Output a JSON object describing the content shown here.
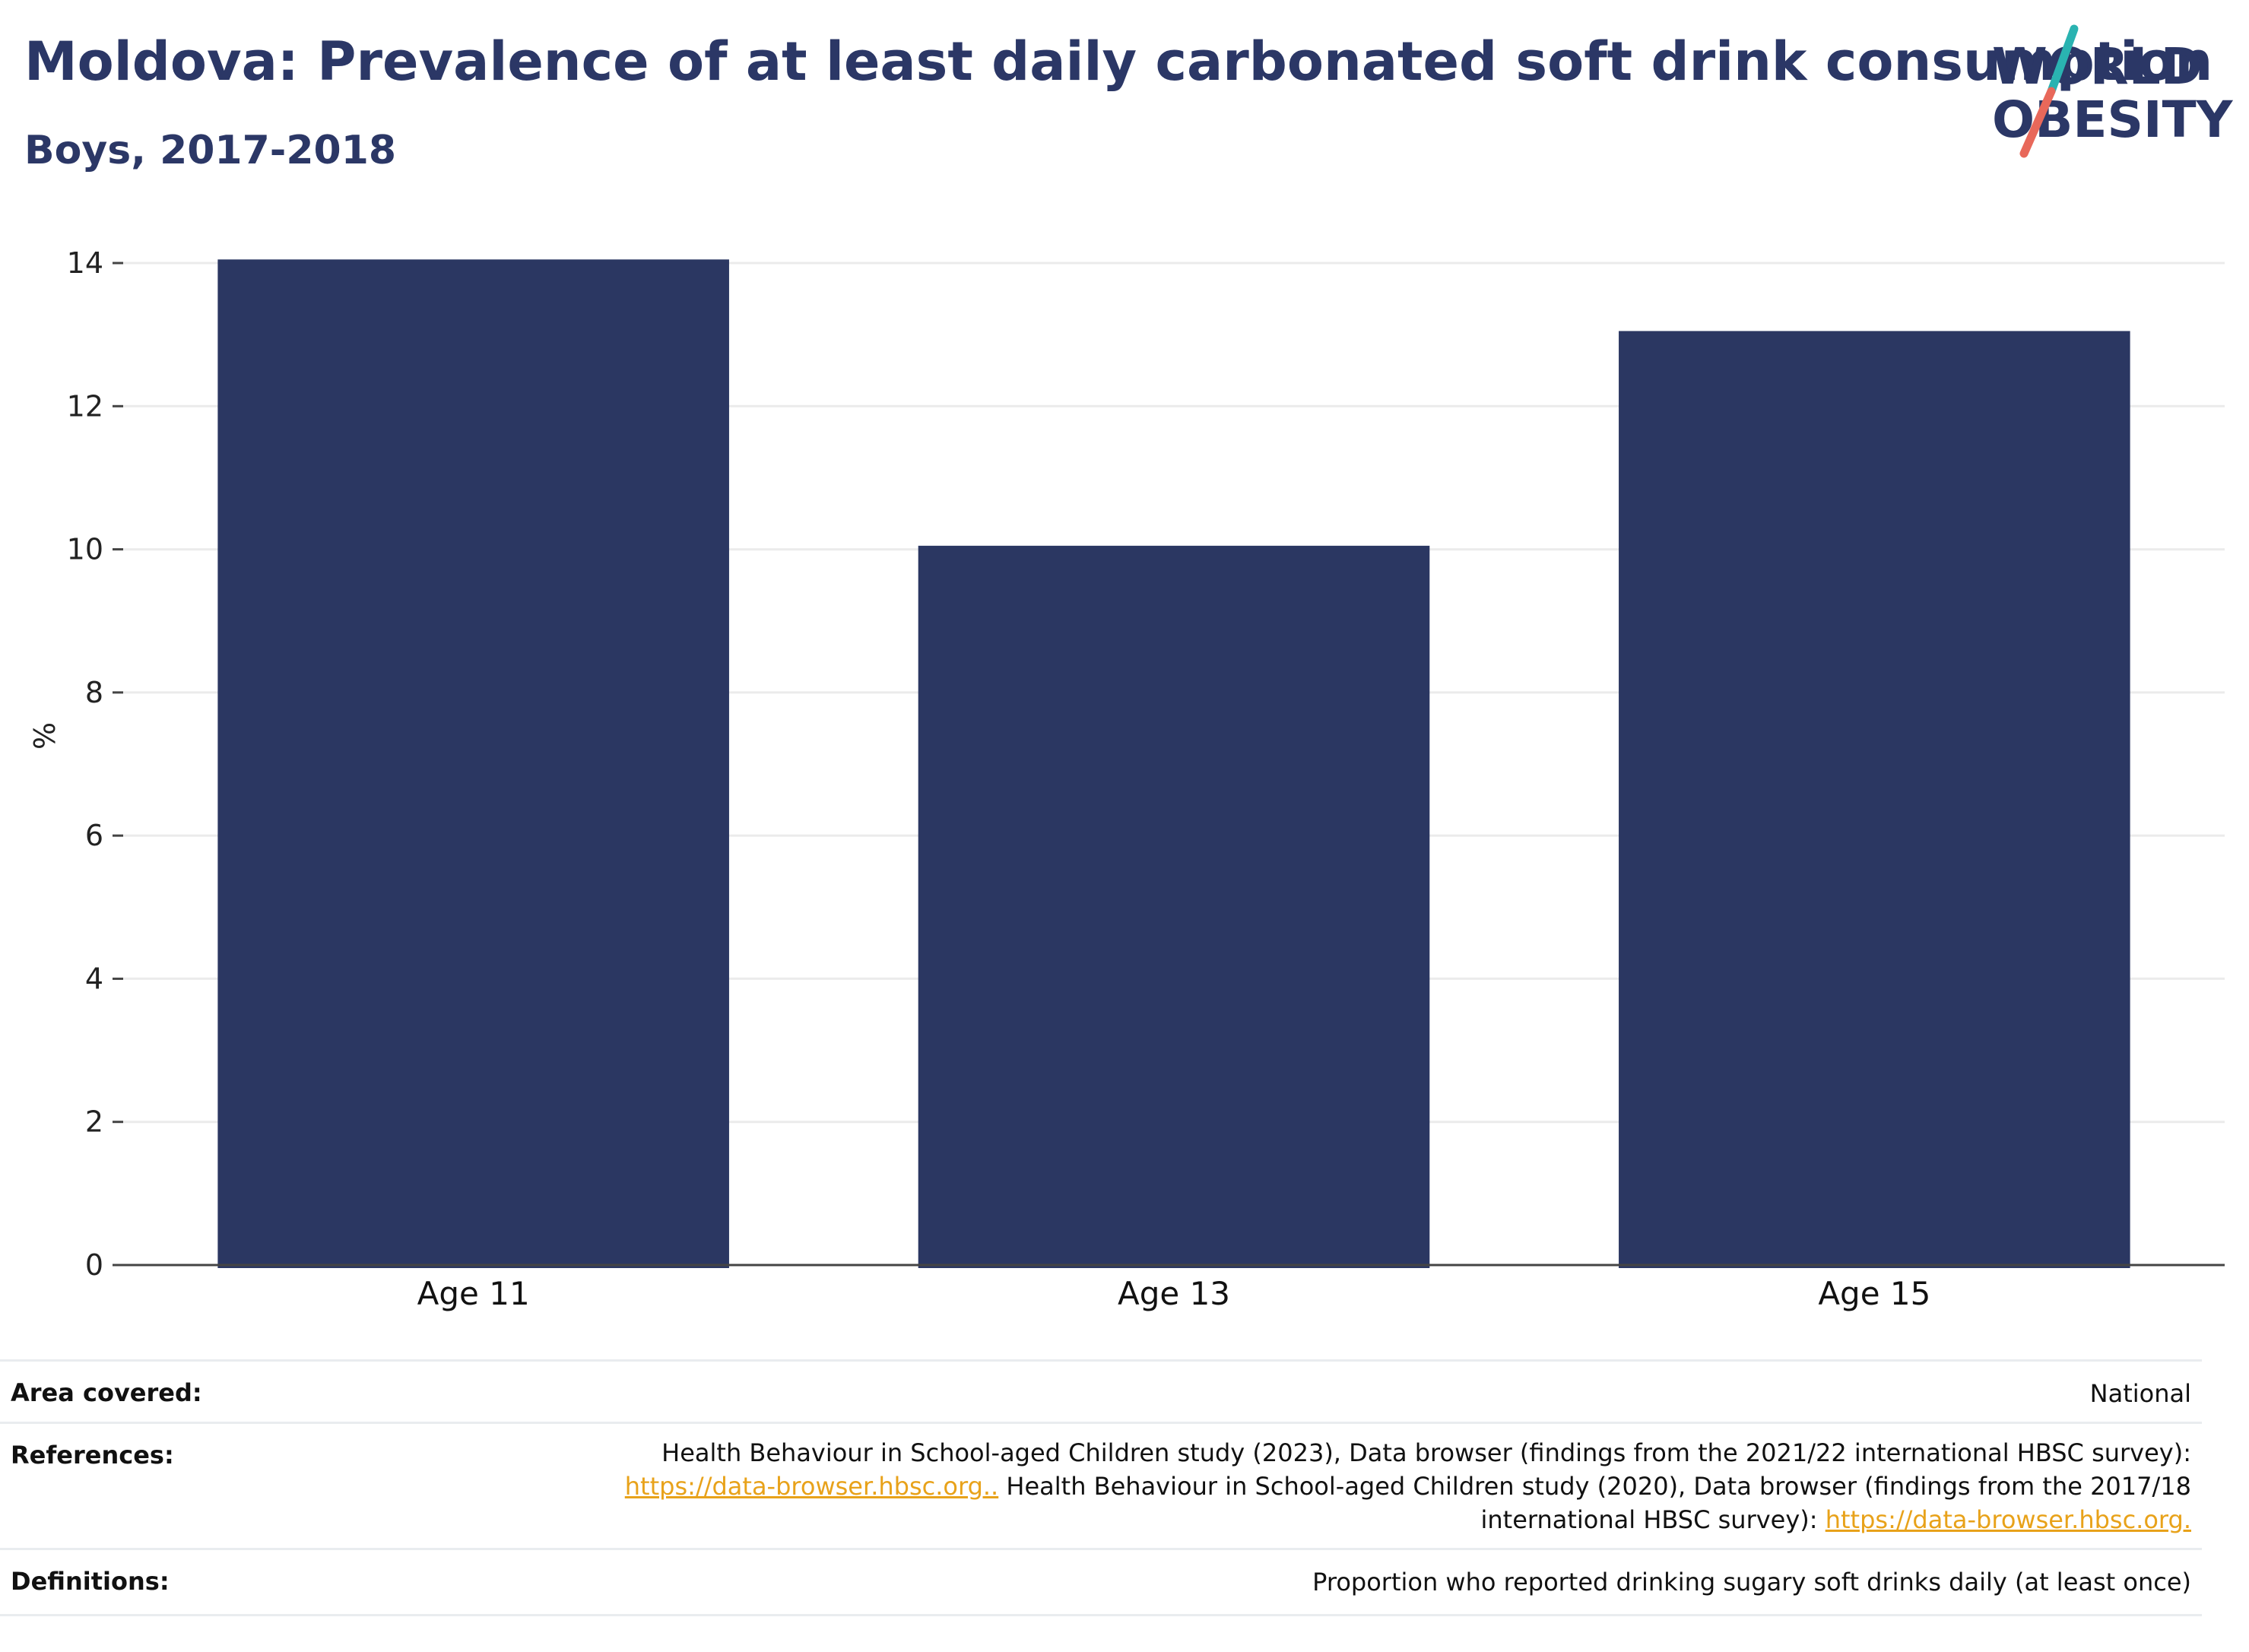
{
  "header": {
    "title": "Moldova: Prevalence of at least daily carbonated soft drink consumption",
    "subtitle": "Boys, 2017-2018"
  },
  "logo": {
    "line1": "WORLD",
    "line2": "OBESITY",
    "colors": {
      "text": "#2b3766",
      "slash_top": "#2ab3b1",
      "slash_bottom": "#e8685a"
    }
  },
  "chart_data": {
    "type": "bar",
    "categories": [
      "Age 11",
      "Age 13",
      "Age 15"
    ],
    "values": [
      14.05,
      10.05,
      13.05
    ],
    "title": "Moldova: Prevalence of at least daily carbonated soft drink consumption",
    "subtitle": "Boys, 2017-2018",
    "xlabel": "",
    "ylabel": "%",
    "ylim": [
      0,
      14
    ],
    "yticks": [
      0,
      2,
      4,
      6,
      8,
      10,
      12,
      14
    ],
    "grid": true,
    "bar_color": "#2b3762"
  },
  "info": {
    "area_label": "Area covered:",
    "area_value": "National",
    "references_label": "References:",
    "ref_line1": "Health Behaviour in School-aged Children study (2023), Data browser (findings from the 2021/22 international HBSC survey):",
    "ref_link1": "https://data-browser.hbsc.org..",
    "ref_line2": " Health Behaviour in School-aged Children study (2020), Data browser (findings from the 2017/18",
    "ref_line3": "international HBSC survey): ",
    "ref_link2": "https://data-browser.hbsc.org.",
    "definitions_label": "Definitions:",
    "definitions_value": "Proportion who reported drinking sugary soft drinks daily (at least once)"
  }
}
